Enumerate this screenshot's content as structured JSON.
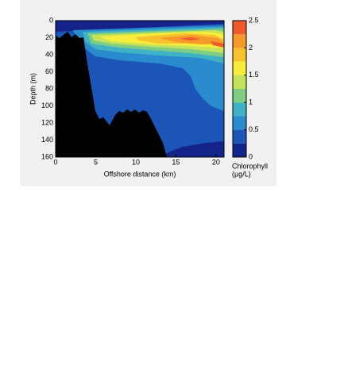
{
  "chart_data": {
    "type": "contour",
    "xlabel": "Offshore distance (km)",
    "ylabel": "Depth (m)",
    "xlim": [
      0,
      21
    ],
    "ylim": [
      0,
      160
    ],
    "y_inverted": true,
    "xticks": [
      0,
      5,
      10,
      15,
      20
    ],
    "yticks": [
      0,
      20,
      40,
      60,
      80,
      100,
      120,
      140,
      160
    ],
    "colorbar": {
      "label": [
        "Chlorophyll",
        "(µg/L)"
      ],
      "levels": [
        0,
        0.25,
        0.5,
        0.75,
        1,
        1.25,
        1.5,
        1.75,
        2,
        2.25,
        2.5
      ],
      "colors": [
        "#14238a",
        "#1b55b8",
        "#2a8bcf",
        "#3fb3c4",
        "#7fcd84",
        "#c4e25a",
        "#f6ee3a",
        "#f8c22f",
        "#f59a2a",
        "#ee5a2c"
      ],
      "ticks": [
        0,
        0.5,
        1,
        1.5,
        2,
        2.5
      ]
    }
  }
}
